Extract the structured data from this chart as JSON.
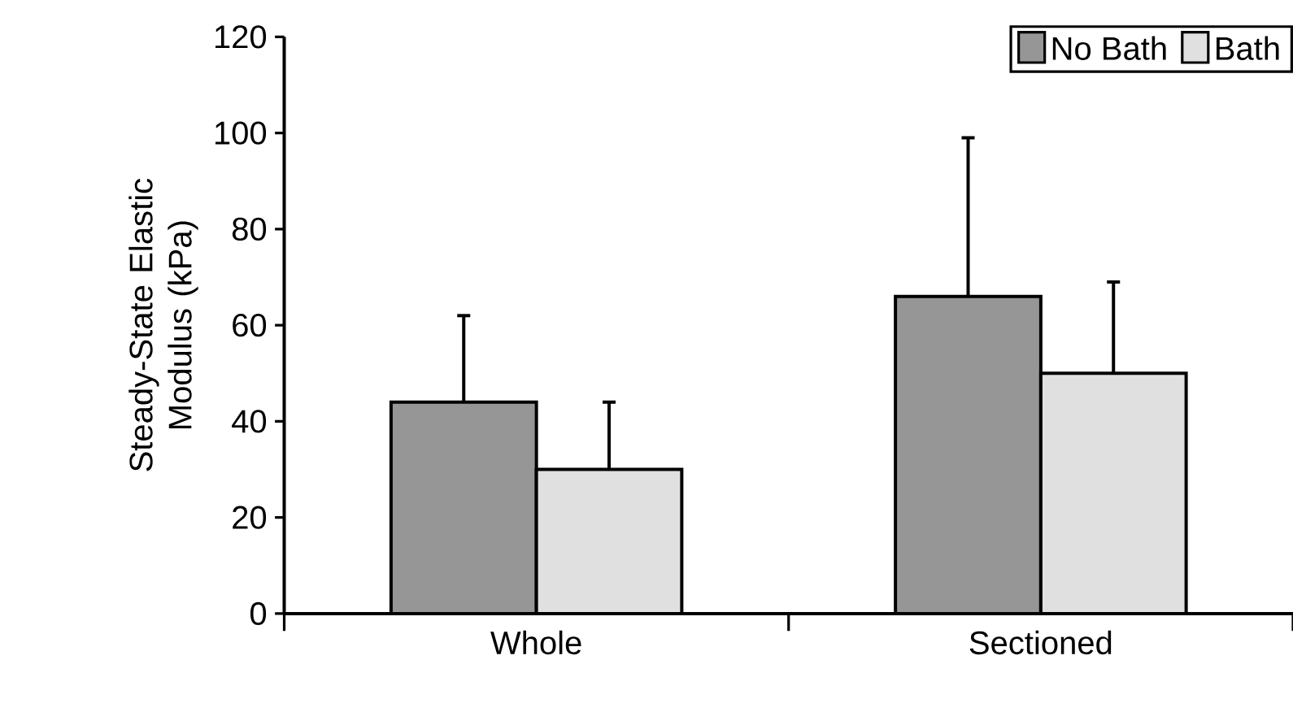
{
  "chart_data": {
    "type": "bar",
    "ylabel": "Steady-State Elastic Modulus (kPa)",
    "categories": [
      "Whole",
      "Sectioned"
    ],
    "series": [
      {
        "name": "No Bath",
        "color": "#969696",
        "values": [
          44,
          66
        ],
        "errors": [
          [
            44,
            62
          ],
          [
            66,
            99
          ]
        ]
      },
      {
        "name": "Bath",
        "color": "#e0e0e0",
        "values": [
          30,
          50
        ],
        "errors": [
          [
            30,
            44
          ],
          [
            50,
            69
          ]
        ]
      }
    ],
    "ylim": [
      0,
      120
    ],
    "yticks": [
      0,
      20,
      40,
      60,
      80,
      100,
      120
    ],
    "grid": false,
    "legend": "top right"
  }
}
